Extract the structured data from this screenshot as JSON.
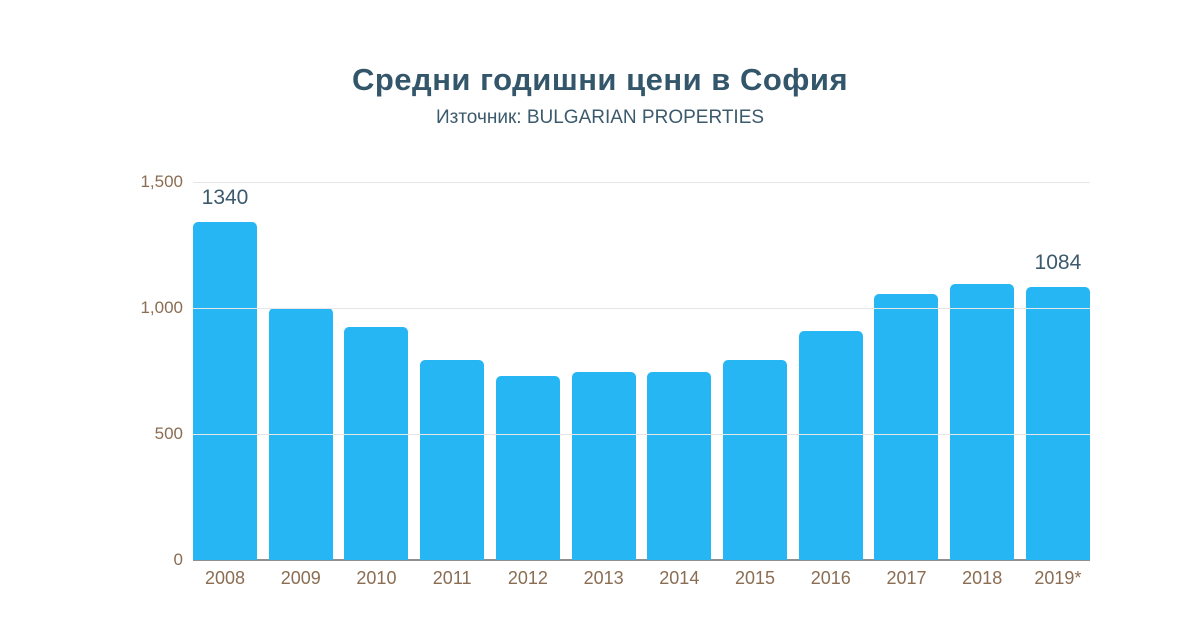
{
  "header": {
    "title": "Средни годишни цени в София",
    "subtitle": "Източник: BULGARIAN PROPERTIES"
  },
  "chart_data": {
    "type": "bar",
    "title": "Средни годишни цени в София",
    "subtitle": "Източник: BULGARIAN PROPERTIES",
    "categories": [
      "2008",
      "2009",
      "2010",
      "2011",
      "2012",
      "2013",
      "2014",
      "2015",
      "2016",
      "2017",
      "2018",
      "2019*"
    ],
    "values": [
      1340,
      1000,
      925,
      795,
      730,
      745,
      745,
      795,
      910,
      1055,
      1095,
      1084
    ],
    "value_labels": [
      "1340",
      "",
      "",
      "",
      "",
      "",
      "",
      "",
      "",
      "",
      "",
      "1084"
    ],
    "xlabel": "",
    "ylabel": "",
    "ylim": [
      0,
      1500
    ],
    "yticks": [
      {
        "value": 1500,
        "label": "1,500"
      },
      {
        "value": 1000,
        "label": "1,000"
      },
      {
        "value": 500,
        "label": "500"
      },
      {
        "value": 0,
        "label": "0"
      }
    ],
    "grid": "horizontal",
    "legend": "none"
  },
  "colors": {
    "bar": "#25b6f3",
    "title": "#33566b",
    "subtitle": "#3c5a6d",
    "tick": "#8a6d52",
    "value_label": "#3c5a6d",
    "gridline": "#e6e6e6",
    "axis": "#8f8f8f",
    "background": "#ffffff"
  }
}
